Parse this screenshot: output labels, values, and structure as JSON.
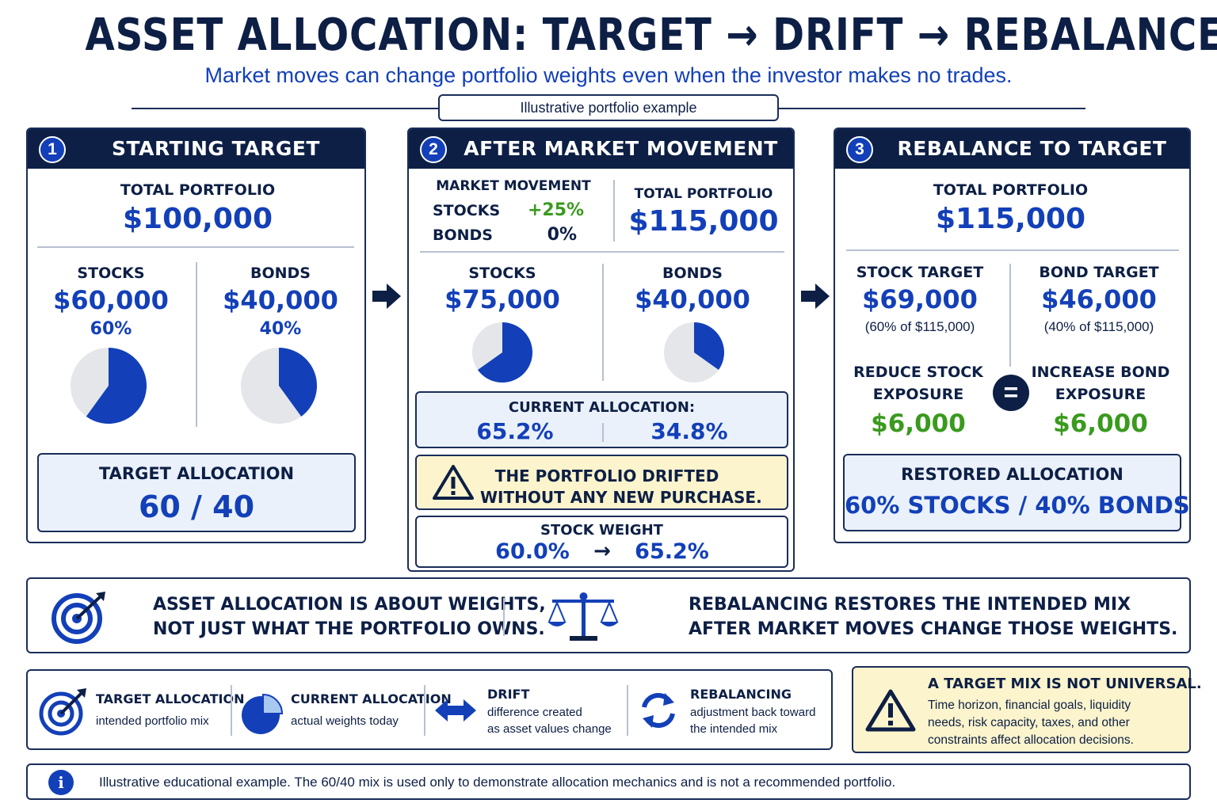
{
  "title": "ASSET ALLOCATION: TARGET → DRIFT → REBALANCE",
  "subtitle": "Market moves can change portfolio weights even when the investor makes no trades.",
  "tag": "Illustrative portfolio example",
  "colors": {
    "navy": "#0d1f45",
    "blue": "#1340b8",
    "green": "#3a9a1e",
    "pie_bg": "#e4e6ea",
    "soft": "#eaf1fb",
    "warn": "#fbf4cc"
  },
  "panel1": {
    "num": "1",
    "title": "STARTING TARGET",
    "total_label": "TOTAL PORTFOLIO",
    "total_value": "$100,000",
    "stocks_label": "STOCKS",
    "stocks_value": "$60,000",
    "stocks_pct": "60%",
    "stocks_share": 0.6,
    "bonds_label": "BONDS",
    "bonds_value": "$40,000",
    "bonds_pct": "40%",
    "bonds_share": 0.4,
    "box_label": "TARGET ALLOCATION",
    "box_value": "60 / 40"
  },
  "panel2": {
    "num": "2",
    "title": "AFTER MARKET MOVEMENT",
    "movement_label": "MARKET MOVEMENT",
    "stocks_row_label": "STOCKS",
    "stocks_row_value": "+25%",
    "bonds_row_label": "BONDS",
    "bonds_row_value": "0%",
    "total_label": "TOTAL PORTFOLIO",
    "total_value": "$115,000",
    "stocks_label": "STOCKS",
    "stocks_value": "$75,000",
    "stocks_share": 0.652,
    "bonds_label": "BONDS",
    "bonds_value": "$40,000",
    "bonds_share": 0.348,
    "current_label": "CURRENT ALLOCATION:",
    "current_stocks": "65.2%",
    "current_bonds": "34.8%",
    "warning_line1": "THE PORTFOLIO DRIFTED",
    "warning_line2": "WITHOUT ANY NEW PURCHASE.",
    "weight_label": "STOCK WEIGHT",
    "weight_from": "60.0%",
    "weight_arrow": "→",
    "weight_to": "65.2%"
  },
  "panel3": {
    "num": "3",
    "title": "REBALANCE TO TARGET",
    "total_label": "TOTAL PORTFOLIO",
    "total_value": "$115,000",
    "stock_target_label": "STOCK TARGET",
    "stock_target_value": "$69,000",
    "stock_target_note": "(60% of $115,000)",
    "bond_target_label": "BOND TARGET",
    "bond_target_value": "$46,000",
    "bond_target_note": "(40% of $115,000)",
    "reduce_line1": "REDUCE STOCK",
    "reduce_line2": "EXPOSURE",
    "reduce_value": "$6,000",
    "equals": "=",
    "increase_line1": "INCREASE BOND",
    "increase_line2": "EXPOSURE",
    "increase_value": "$6,000",
    "restored_label": "RESTORED ALLOCATION",
    "restored_value": "60% STOCKS  /  40% BONDS"
  },
  "insights": {
    "left_line1": "ASSET ALLOCATION IS ABOUT WEIGHTS,",
    "left_line2": "NOT JUST WHAT THE PORTFOLIO OWNS.",
    "right_line1": "REBALANCING RESTORES THE INTENDED MIX",
    "right_line2": "AFTER MARKET MOVES CHANGE THOSE WEIGHTS."
  },
  "legend": [
    {
      "icon": "target-icon",
      "title": "TARGET ALLOCATION",
      "desc1": "intended portfolio mix",
      "desc2": ""
    },
    {
      "icon": "pie-chart-icon",
      "title": "CURRENT ALLOCATION",
      "desc1": "actual weights today",
      "desc2": ""
    },
    {
      "icon": "double-arrow-icon",
      "title": "DRIFT",
      "desc1": "difference created",
      "desc2": "as asset values change"
    },
    {
      "icon": "refresh-icon",
      "title": "REBALANCING",
      "desc1": "adjustment back toward",
      "desc2": "the intended mix"
    }
  ],
  "caution": {
    "title": "A TARGET MIX IS NOT UNIVERSAL.",
    "line1": "Time horizon, financial goals, liquidity",
    "line2": "needs, risk capacity, taxes, and other",
    "line3": "constraints affect allocation decisions."
  },
  "footer": "Illustrative educational example. The 60/40 mix is used only to demonstrate allocation mechanics and is not a recommended portfolio."
}
